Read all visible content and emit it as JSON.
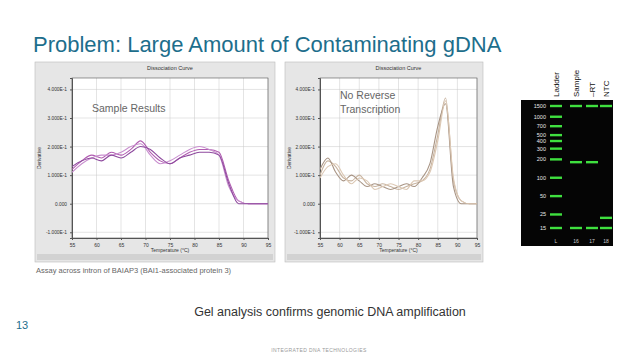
{
  "slide": {
    "title": "Problem: Large Amount of Contaminating gDNA",
    "caption": "Assay across intron of BAIAP3 (BAI1-associated protein 3)",
    "conclusion": "Gel analysis confirms genomic DNA amplification",
    "page_number": "13",
    "footer": "INTEGRATED DNA TECHNOLOGIES"
  },
  "chart_data": [
    {
      "type": "line",
      "title": "Dissociation Curve",
      "annotations": [
        "Sample Results"
      ],
      "x_label": "Temperature (°C)",
      "y_label": "Derivative",
      "grid": true,
      "xlim": [
        55,
        95
      ],
      "xticks": [
        55,
        60,
        65,
        70,
        75,
        80,
        85,
        90,
        95
      ],
      "ylim": [
        -0.12,
        0.44
      ],
      "yticks": [
        {
          "value": -0.1,
          "label": "-1.000E-1"
        },
        {
          "value": 0,
          "label": "0.000"
        },
        {
          "value": 0.1,
          "label": "1.000E-1"
        },
        {
          "value": 0.2,
          "label": "2.000E-1"
        },
        {
          "value": 0.3,
          "label": "3.000E-1"
        },
        {
          "value": 0.4,
          "label": "4.000E-1"
        }
      ],
      "x": [
        55,
        57,
        59,
        61,
        63,
        65,
        67,
        69,
        71,
        73,
        75,
        77,
        79,
        81,
        83,
        85,
        87,
        89,
        91,
        93,
        95
      ],
      "series": [
        {
          "color": "#b05cb0",
          "values": [
            0.12,
            0.15,
            0.17,
            0.16,
            0.18,
            0.17,
            0.19,
            0.22,
            0.18,
            0.15,
            0.14,
            0.16,
            0.18,
            0.19,
            0.19,
            0.18,
            0.08,
            0.01,
            0.0,
            0.0,
            0.0
          ]
        },
        {
          "color": "#c98fcf",
          "values": [
            0.11,
            0.14,
            0.16,
            0.17,
            0.17,
            0.18,
            0.2,
            0.21,
            0.17,
            0.14,
            0.15,
            0.17,
            0.19,
            0.2,
            0.19,
            0.17,
            0.06,
            0.01,
            0.0,
            0.0,
            0.0
          ]
        },
        {
          "color": "#8e4a9e",
          "values": [
            0.13,
            0.15,
            0.16,
            0.15,
            0.17,
            0.16,
            0.18,
            0.2,
            0.19,
            0.16,
            0.14,
            0.16,
            0.17,
            0.18,
            0.18,
            0.17,
            0.07,
            0.0,
            0.0,
            0.0,
            0.0
          ]
        }
      ]
    },
    {
      "type": "line",
      "title": "Dissociation Curve",
      "annotations": [
        "No Reverse",
        "Transcription"
      ],
      "x_label": "Temperature (°C)",
      "y_label": "Derivative",
      "grid": true,
      "xlim": [
        55,
        95
      ],
      "xticks": [
        55,
        60,
        65,
        70,
        75,
        80,
        85,
        90,
        95
      ],
      "ylim": [
        -0.12,
        0.44
      ],
      "yticks": [
        {
          "value": -0.1,
          "label": "-1.000E-1"
        },
        {
          "value": 0,
          "label": "0.000"
        },
        {
          "value": 0.1,
          "label": "1.000E-1"
        },
        {
          "value": 0.2,
          "label": "2.000E-1"
        },
        {
          "value": 0.3,
          "label": "3.000E-1"
        },
        {
          "value": 0.4,
          "label": "4.000E-1"
        }
      ],
      "x": [
        55,
        57,
        59,
        61,
        63,
        65,
        67,
        69,
        71,
        73,
        75,
        77,
        79,
        81,
        83,
        85,
        87,
        89,
        91,
        93,
        95
      ],
      "series": [
        {
          "color": "#c8b4a0",
          "values": [
            0.1,
            0.15,
            0.13,
            0.09,
            0.08,
            0.1,
            0.07,
            0.06,
            0.07,
            0.06,
            0.05,
            0.06,
            0.07,
            0.08,
            0.12,
            0.24,
            0.37,
            0.08,
            0.01,
            0.0,
            0.0
          ]
        },
        {
          "color": "#a89484",
          "values": [
            0.12,
            0.16,
            0.11,
            0.08,
            0.1,
            0.08,
            0.06,
            0.07,
            0.06,
            0.05,
            0.06,
            0.07,
            0.06,
            0.09,
            0.14,
            0.27,
            0.35,
            0.06,
            0.0,
            0.0,
            0.0
          ]
        },
        {
          "color": "#dcc8b4",
          "values": [
            0.09,
            0.13,
            0.14,
            0.1,
            0.07,
            0.09,
            0.08,
            0.05,
            0.06,
            0.07,
            0.06,
            0.05,
            0.08,
            0.08,
            0.11,
            0.22,
            0.36,
            0.09,
            0.01,
            0.0,
            0.0
          ]
        }
      ]
    }
  ],
  "gel": {
    "column_labels": [
      "Ladder",
      "Sample",
      "–RT",
      "NTC"
    ],
    "lane_numbers": [
      "L",
      "16",
      "17",
      "18"
    ],
    "ladder_labels": [
      1500,
      1000,
      700,
      500,
      400,
      300,
      200,
      100,
      50,
      25,
      15
    ],
    "bands": [
      [
        1500,
        1000,
        700,
        500,
        400,
        300,
        200,
        100,
        50,
        25,
        15
      ],
      [
        1500,
        180,
        15
      ],
      [
        1500,
        180,
        15
      ],
      [
        1500,
        22,
        15
      ]
    ]
  }
}
